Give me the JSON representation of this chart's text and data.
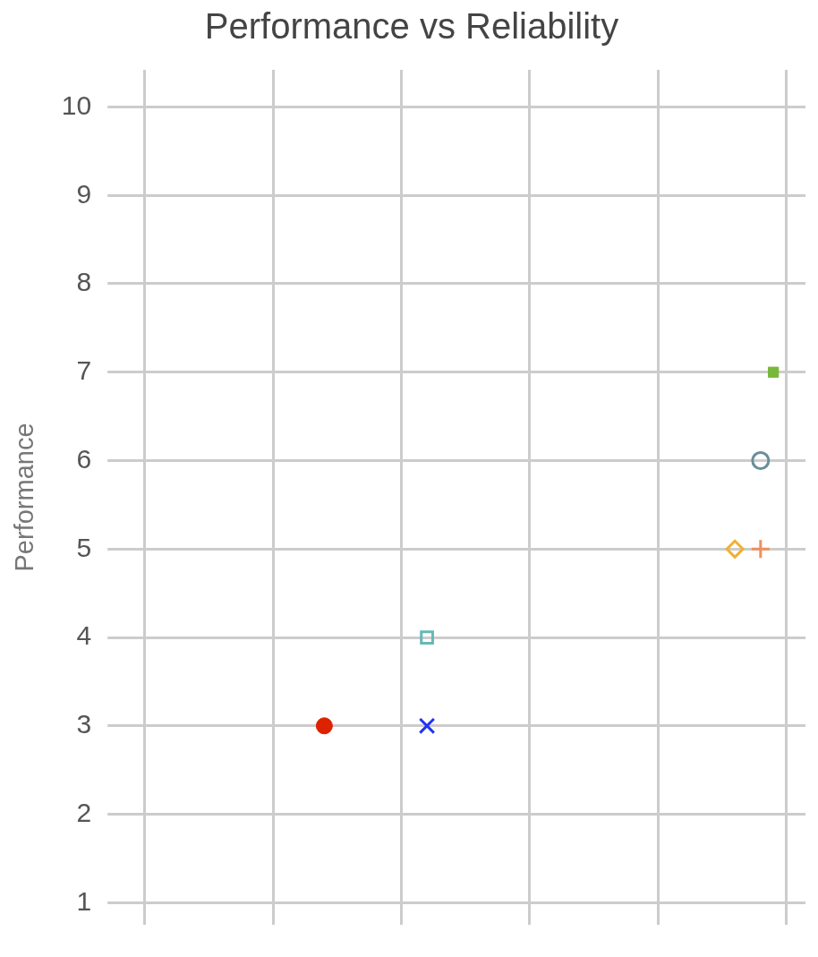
{
  "chart_data": {
    "type": "scatter",
    "title": "Performance vs Reliability",
    "ylabel": "Performance",
    "categories": [
      null,
      null,
      null,
      null,
      null,
      null,
      null,
      null,
      null,
      null,
      null,
      null,
      null,
      null,
      null,
      null,
      null,
      null,
      null,
      null,
      null,
      null,
      null,
      null,
      null,
      null,
      null,
      null,
      null,
      null,
      null,
      null,
      null,
      null,
      null,
      null,
      null,
      null,
      null,
      null,
      null,
      null,
      null,
      null,
      null,
      null,
      null,
      null,
      null,
      null,
      null,
      null,
      null
    ],
    "ylim": [
      0.75,
      10.42
    ],
    "yticks": [
      1,
      2,
      3,
      4,
      5,
      6,
      7,
      8,
      9,
      10
    ],
    "tick_labels": "y",
    "grid": true,
    "legend": false,
    "series": [
      {
        "color": "#dd2200",
        "marker": "circle",
        "values": [
          null,
          null,
          null,
          null,
          null,
          null,
          null,
          null,
          null,
          null,
          null,
          null,
          null,
          null,
          null,
          3,
          null,
          null,
          null,
          null,
          null,
          null,
          null,
          null,
          null,
          null,
          null,
          null,
          null,
          null,
          null,
          null,
          null,
          null,
          null,
          null,
          null,
          null,
          null,
          null,
          null,
          null,
          null,
          null,
          null,
          null,
          null,
          null,
          null,
          null,
          null,
          null,
          null
        ]
      },
      {
        "color": "#2233ee",
        "marker": "cross",
        "values": [
          null,
          null,
          null,
          null,
          null,
          null,
          null,
          null,
          null,
          null,
          null,
          null,
          null,
          null,
          null,
          null,
          null,
          null,
          null,
          null,
          null,
          null,
          null,
          3,
          null,
          null,
          null,
          null,
          null,
          null,
          null,
          null,
          null,
          null,
          null,
          null,
          null,
          null,
          null,
          null,
          null,
          null,
          null,
          null,
          null,
          null,
          null,
          null,
          null,
          null,
          null,
          null,
          null
        ]
      },
      {
        "color": "#66b8b8",
        "marker": "square-open",
        "values": [
          null,
          null,
          null,
          null,
          null,
          null,
          null,
          null,
          null,
          null,
          null,
          null,
          null,
          null,
          null,
          null,
          null,
          null,
          null,
          null,
          null,
          null,
          null,
          4,
          null,
          null,
          null,
          null,
          null,
          null,
          null,
          null,
          null,
          null,
          null,
          null,
          null,
          null,
          null,
          null,
          null,
          null,
          null,
          null,
          null,
          null,
          null,
          null,
          null,
          null,
          null,
          null,
          null
        ]
      },
      {
        "color": "#f0b030",
        "marker": "diamond-open",
        "values": [
          null,
          null,
          null,
          null,
          null,
          null,
          null,
          null,
          null,
          null,
          null,
          null,
          null,
          null,
          null,
          null,
          null,
          null,
          null,
          null,
          null,
          null,
          null,
          null,
          null,
          null,
          null,
          null,
          null,
          null,
          null,
          null,
          null,
          null,
          null,
          null,
          null,
          null,
          null,
          null,
          null,
          null,
          null,
          null,
          null,
          null,
          null,
          5,
          null,
          null,
          null,
          null,
          null
        ]
      },
      {
        "color": "#ee9060",
        "marker": "plus",
        "values": [
          null,
          null,
          null,
          null,
          null,
          null,
          null,
          null,
          null,
          null,
          null,
          null,
          null,
          null,
          null,
          null,
          null,
          null,
          null,
          null,
          null,
          null,
          null,
          null,
          null,
          null,
          null,
          null,
          null,
          null,
          null,
          null,
          null,
          null,
          null,
          null,
          null,
          null,
          null,
          null,
          null,
          null,
          null,
          null,
          null,
          null,
          null,
          null,
          null,
          5,
          null,
          null,
          null
        ]
      },
      {
        "color": "#6a8f98",
        "marker": "circle-open",
        "values": [
          null,
          null,
          null,
          null,
          null,
          null,
          null,
          null,
          null,
          null,
          null,
          null,
          null,
          null,
          null,
          null,
          null,
          null,
          null,
          null,
          null,
          null,
          null,
          null,
          null,
          null,
          null,
          null,
          null,
          null,
          null,
          null,
          null,
          null,
          null,
          null,
          null,
          null,
          null,
          null,
          null,
          null,
          null,
          null,
          null,
          null,
          null,
          null,
          null,
          6,
          null,
          null,
          null
        ]
      },
      {
        "color": "#77b83a",
        "marker": "square",
        "values": [
          null,
          null,
          null,
          null,
          null,
          null,
          null,
          null,
          null,
          null,
          null,
          null,
          null,
          null,
          null,
          null,
          null,
          null,
          null,
          null,
          null,
          null,
          null,
          null,
          null,
          null,
          null,
          null,
          null,
          null,
          null,
          null,
          null,
          null,
          null,
          null,
          null,
          null,
          null,
          null,
          null,
          null,
          null,
          null,
          null,
          null,
          null,
          null,
          null,
          null,
          7,
          null,
          null
        ]
      }
    ]
  }
}
